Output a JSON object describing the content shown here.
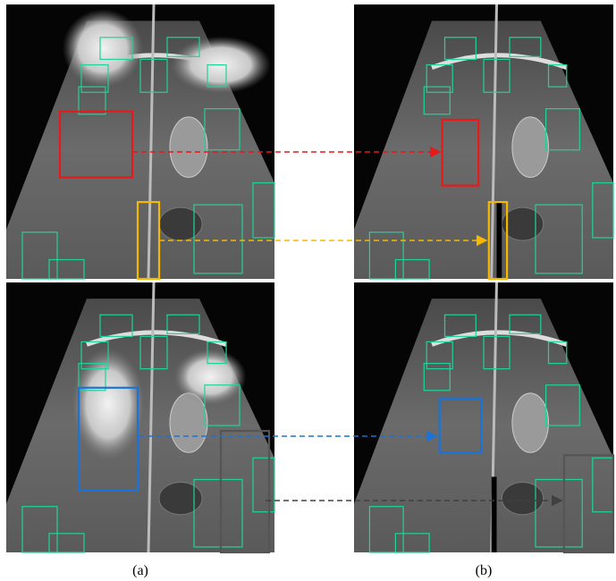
{
  "labels": {
    "a": "(a)",
    "b": "(b)"
  }
}
